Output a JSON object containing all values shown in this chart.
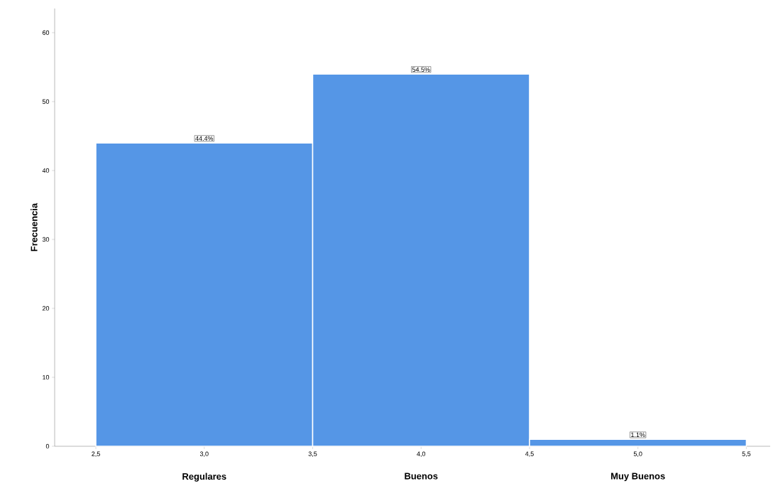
{
  "chart_data": {
    "type": "histogram",
    "ylabel": "Frecuencia",
    "bins": [
      2.5,
      3.5,
      4.5,
      5.5
    ],
    "values": [
      44,
      54,
      1
    ],
    "color": "#5596e6",
    "xlim": [
      2.31,
      5.61
    ],
    "ylim": [
      0,
      63.5
    ],
    "xticks": [
      {
        "value": 2.5,
        "label": "2,5"
      },
      {
        "value": 3.0,
        "label": "3,0"
      },
      {
        "value": 3.5,
        "label": "3,5"
      },
      {
        "value": 4.0,
        "label": "4,0"
      },
      {
        "value": 4.5,
        "label": "4,5"
      },
      {
        "value": 5.0,
        "label": "5,0"
      },
      {
        "value": 5.5,
        "label": "5,5"
      }
    ],
    "yticks": [
      0,
      10,
      20,
      30,
      40,
      50,
      60
    ],
    "annotations": [
      {
        "text": "44.4%",
        "x": 3.0,
        "y": 44
      },
      {
        "text": "54.5%",
        "x": 4.0,
        "y": 54
      },
      {
        "text": "1.1%",
        "x": 5.0,
        "y": 1
      },
      {
        "text": "Regulares",
        "x": 3.0,
        "y": 0
      },
      {
        "text": "Buenos",
        "x": 4.0,
        "y": 0
      },
      {
        "text": "Muy Buenos",
        "x": 5.0,
        "y": 0
      }
    ],
    "grid": false
  }
}
